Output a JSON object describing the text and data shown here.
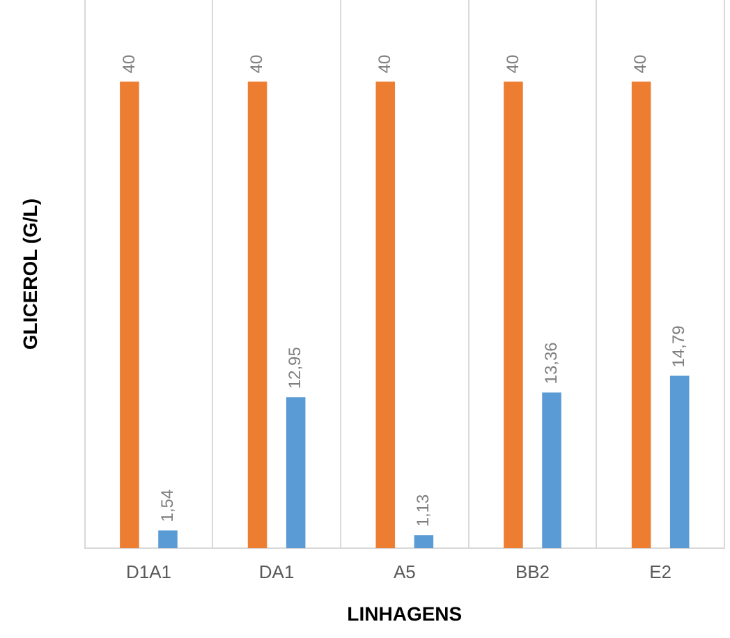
{
  "chart_data": {
    "type": "bar",
    "xlabel": "LINHAGENS",
    "ylabel": "GLICEROL (G/L)",
    "categories": [
      "D1A1",
      "DA1",
      "A5",
      "BB2",
      "E2"
    ],
    "series": [
      {
        "color": "#ed7d31",
        "values": [
          40,
          40,
          40,
          40,
          40
        ],
        "value_labels": [
          "40",
          "40",
          "40",
          "40",
          "40"
        ]
      },
      {
        "color": "#5b9bd5",
        "values": [
          1.54,
          12.95,
          1.13,
          13.36,
          14.79
        ],
        "value_labels": [
          "1,54",
          "12,95",
          "1,13",
          "13,36",
          "14,79"
        ]
      }
    ],
    "ylim": [
      0,
      47
    ],
    "grid": "x",
    "legend": false
  }
}
